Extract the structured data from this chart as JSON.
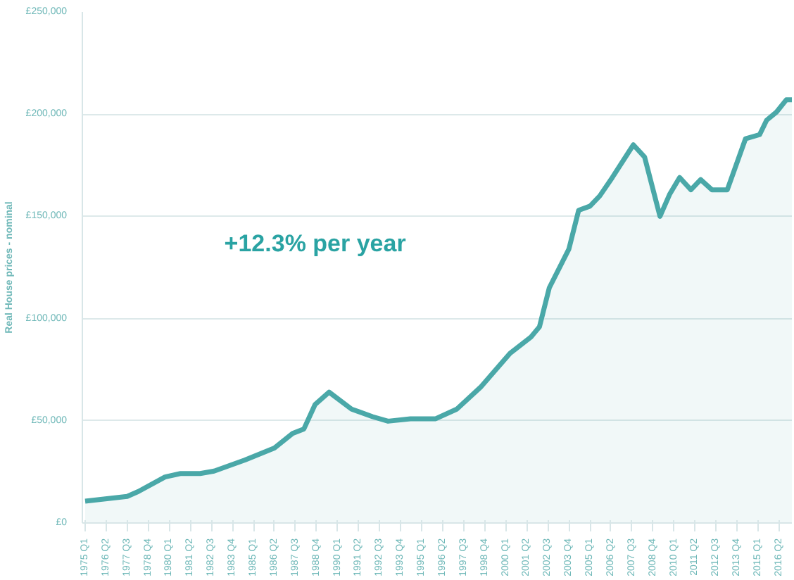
{
  "chart_data": {
    "type": "area",
    "ylabel": "Real House prices - nominal",
    "annotations": [
      "+12.3% per year"
    ],
    "x": [
      "1975-01",
      "1977-07",
      "1978-03",
      "1979-10",
      "1980-09",
      "1981-11",
      "1982-09",
      "1984-07",
      "1986-04",
      "1987-05",
      "1988-01",
      "1988-09",
      "1989-07",
      "1990-11",
      "1992-02",
      "1993-01",
      "1994-05",
      "1995-11",
      "1997-02",
      "1998-07",
      "2000-04",
      "2001-07",
      "2002-01",
      "2002-08",
      "2003-10",
      "2004-05",
      "2005-01",
      "2005-08",
      "2006-05",
      "2007-08",
      "2008-04",
      "2009-03",
      "2009-10",
      "2010-05",
      "2011-01",
      "2011-08",
      "2012-04",
      "2013-03",
      "2014-04",
      "2015-02",
      "2015-07",
      "2016-02",
      "2016-09",
      "2017-01"
    ],
    "series": [
      {
        "color": "#4aa8a8",
        "values": [
          10700,
          13000,
          15400,
          22500,
          24200,
          24200,
          25400,
          30800,
          36700,
          43800,
          46000,
          58000,
          64000,
          55700,
          52000,
          49800,
          51000,
          51000,
          55700,
          66400,
          83000,
          91000,
          96000,
          115000,
          134000,
          153000,
          155000,
          160000,
          169000,
          185000,
          179000,
          150000,
          161000,
          169000,
          163000,
          168000,
          163000,
          163000,
          188000,
          190000,
          197000,
          201000,
          207000,
          207000
        ]
      }
    ],
    "xlim": [
      "1974-11",
      "2017-01"
    ],
    "xticks": [
      {
        "value": "1975-01",
        "label": "1975 Q1"
      },
      {
        "value": "1976-04",
        "label": "1976 Q2"
      },
      {
        "value": "1977-07",
        "label": "1977 Q3"
      },
      {
        "value": "1978-10",
        "label": "1978 Q4"
      },
      {
        "value": "1980-01",
        "label": "1980 Q1"
      },
      {
        "value": "1981-04",
        "label": "1981 Q2"
      },
      {
        "value": "1982-07",
        "label": "1982 Q3"
      },
      {
        "value": "1983-10",
        "label": "1983 Q4"
      },
      {
        "value": "1985-01",
        "label": "1985 Q1"
      },
      {
        "value": "1986-04",
        "label": "1986 Q2"
      },
      {
        "value": "1987-07",
        "label": "1987 Q3"
      },
      {
        "value": "1988-10",
        "label": "1988 Q4"
      },
      {
        "value": "1990-01",
        "label": "1990 Q1"
      },
      {
        "value": "1991-04",
        "label": "1991 Q2"
      },
      {
        "value": "1992-07",
        "label": "1992 Q3"
      },
      {
        "value": "1993-10",
        "label": "1993 Q4"
      },
      {
        "value": "1995-01",
        "label": "1995 Q1"
      },
      {
        "value": "1996-04",
        "label": "1996 Q2"
      },
      {
        "value": "1997-07",
        "label": "1997 Q3"
      },
      {
        "value": "1998-10",
        "label": "1998 Q4"
      },
      {
        "value": "2000-01",
        "label": "2000 Q1"
      },
      {
        "value": "2001-04",
        "label": "2001 Q2"
      },
      {
        "value": "2002-07",
        "label": "2002 Q3"
      },
      {
        "value": "2003-10",
        "label": "2003 Q4"
      },
      {
        "value": "2005-01",
        "label": "2005 Q1"
      },
      {
        "value": "2006-04",
        "label": "2006 Q2"
      },
      {
        "value": "2007-07",
        "label": "2007 Q3"
      },
      {
        "value": "2008-10",
        "label": "2008 Q4"
      },
      {
        "value": "2010-01",
        "label": "2010 Q1"
      },
      {
        "value": "2011-04",
        "label": "2011 Q2"
      },
      {
        "value": "2012-07",
        "label": "2012 Q3"
      },
      {
        "value": "2013-10",
        "label": "2013 Q4"
      },
      {
        "value": "2015-01",
        "label": "2015 Q1"
      },
      {
        "value": "2016-04",
        "label": "2016 Q2"
      }
    ],
    "ylim": [
      0,
      250000
    ],
    "yticks": [
      {
        "value": 0,
        "label": "£0"
      },
      {
        "value": 50000,
        "label": "£50,000"
      },
      {
        "value": 100000,
        "label": "£100,000"
      },
      {
        "value": 150000,
        "label": "£150,000"
      },
      {
        "value": 200000,
        "label": "£200,000"
      },
      {
        "value": 250000,
        "label": "£250,000"
      }
    ],
    "grid": "y"
  }
}
